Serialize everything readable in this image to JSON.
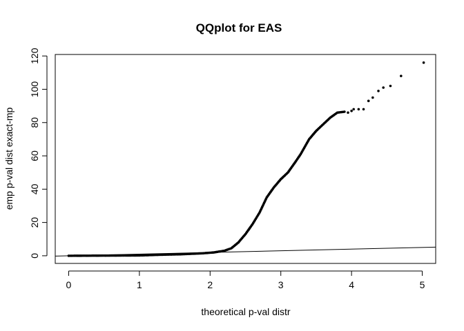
{
  "chart_data": {
    "type": "scatter",
    "title": "QQplot for EAS",
    "xlabel": "theoretical p-val distr",
    "ylabel": "emp p-val dist exact-mp",
    "xlim": [
      -0.19,
      5.19
    ],
    "ylim": [
      -4.6,
      120.9
    ],
    "xticks": [
      0,
      1,
      2,
      3,
      4,
      5
    ],
    "yticks": [
      0,
      20,
      40,
      60,
      80,
      100,
      120
    ],
    "grid": false,
    "legend": "none",
    "reference_line": {
      "x": [
        -0.19,
        5.19
      ],
      "y": [
        -0.19,
        5.19
      ]
    },
    "curve_points": [
      [
        0,
        0
      ],
      [
        0.5,
        0.1
      ],
      [
        1.0,
        0.2
      ],
      [
        1.3,
        0.6
      ],
      [
        1.6,
        0.9
      ],
      [
        1.9,
        1.5
      ],
      [
        2.05,
        2.0
      ],
      [
        2.2,
        3.0
      ],
      [
        2.3,
        4.5
      ],
      [
        2.4,
        8.0
      ],
      [
        2.5,
        13.0
      ],
      [
        2.6,
        19.0
      ],
      [
        2.7,
        26.0
      ],
      [
        2.8,
        35.0
      ],
      [
        2.9,
        41.0
      ],
      [
        3.0,
        46.0
      ],
      [
        3.1,
        50.0
      ],
      [
        3.2,
        56.0
      ],
      [
        3.28,
        61.0
      ],
      [
        3.32,
        64.0
      ],
      [
        3.4,
        70.0
      ],
      [
        3.5,
        75.0
      ],
      [
        3.6,
        79.0
      ],
      [
        3.7,
        83.0
      ],
      [
        3.8,
        86.0
      ],
      [
        3.9,
        86.5
      ]
    ],
    "tail_points": [
      [
        3.95,
        86
      ],
      [
        4.0,
        87
      ],
      [
        4.03,
        88
      ],
      [
        4.1,
        88
      ],
      [
        4.17,
        88
      ],
      [
        4.24,
        93
      ],
      [
        4.3,
        95
      ],
      [
        4.38,
        99
      ],
      [
        4.45,
        101
      ],
      [
        4.55,
        102
      ],
      [
        4.7,
        108
      ],
      [
        5.02,
        116
      ]
    ]
  }
}
